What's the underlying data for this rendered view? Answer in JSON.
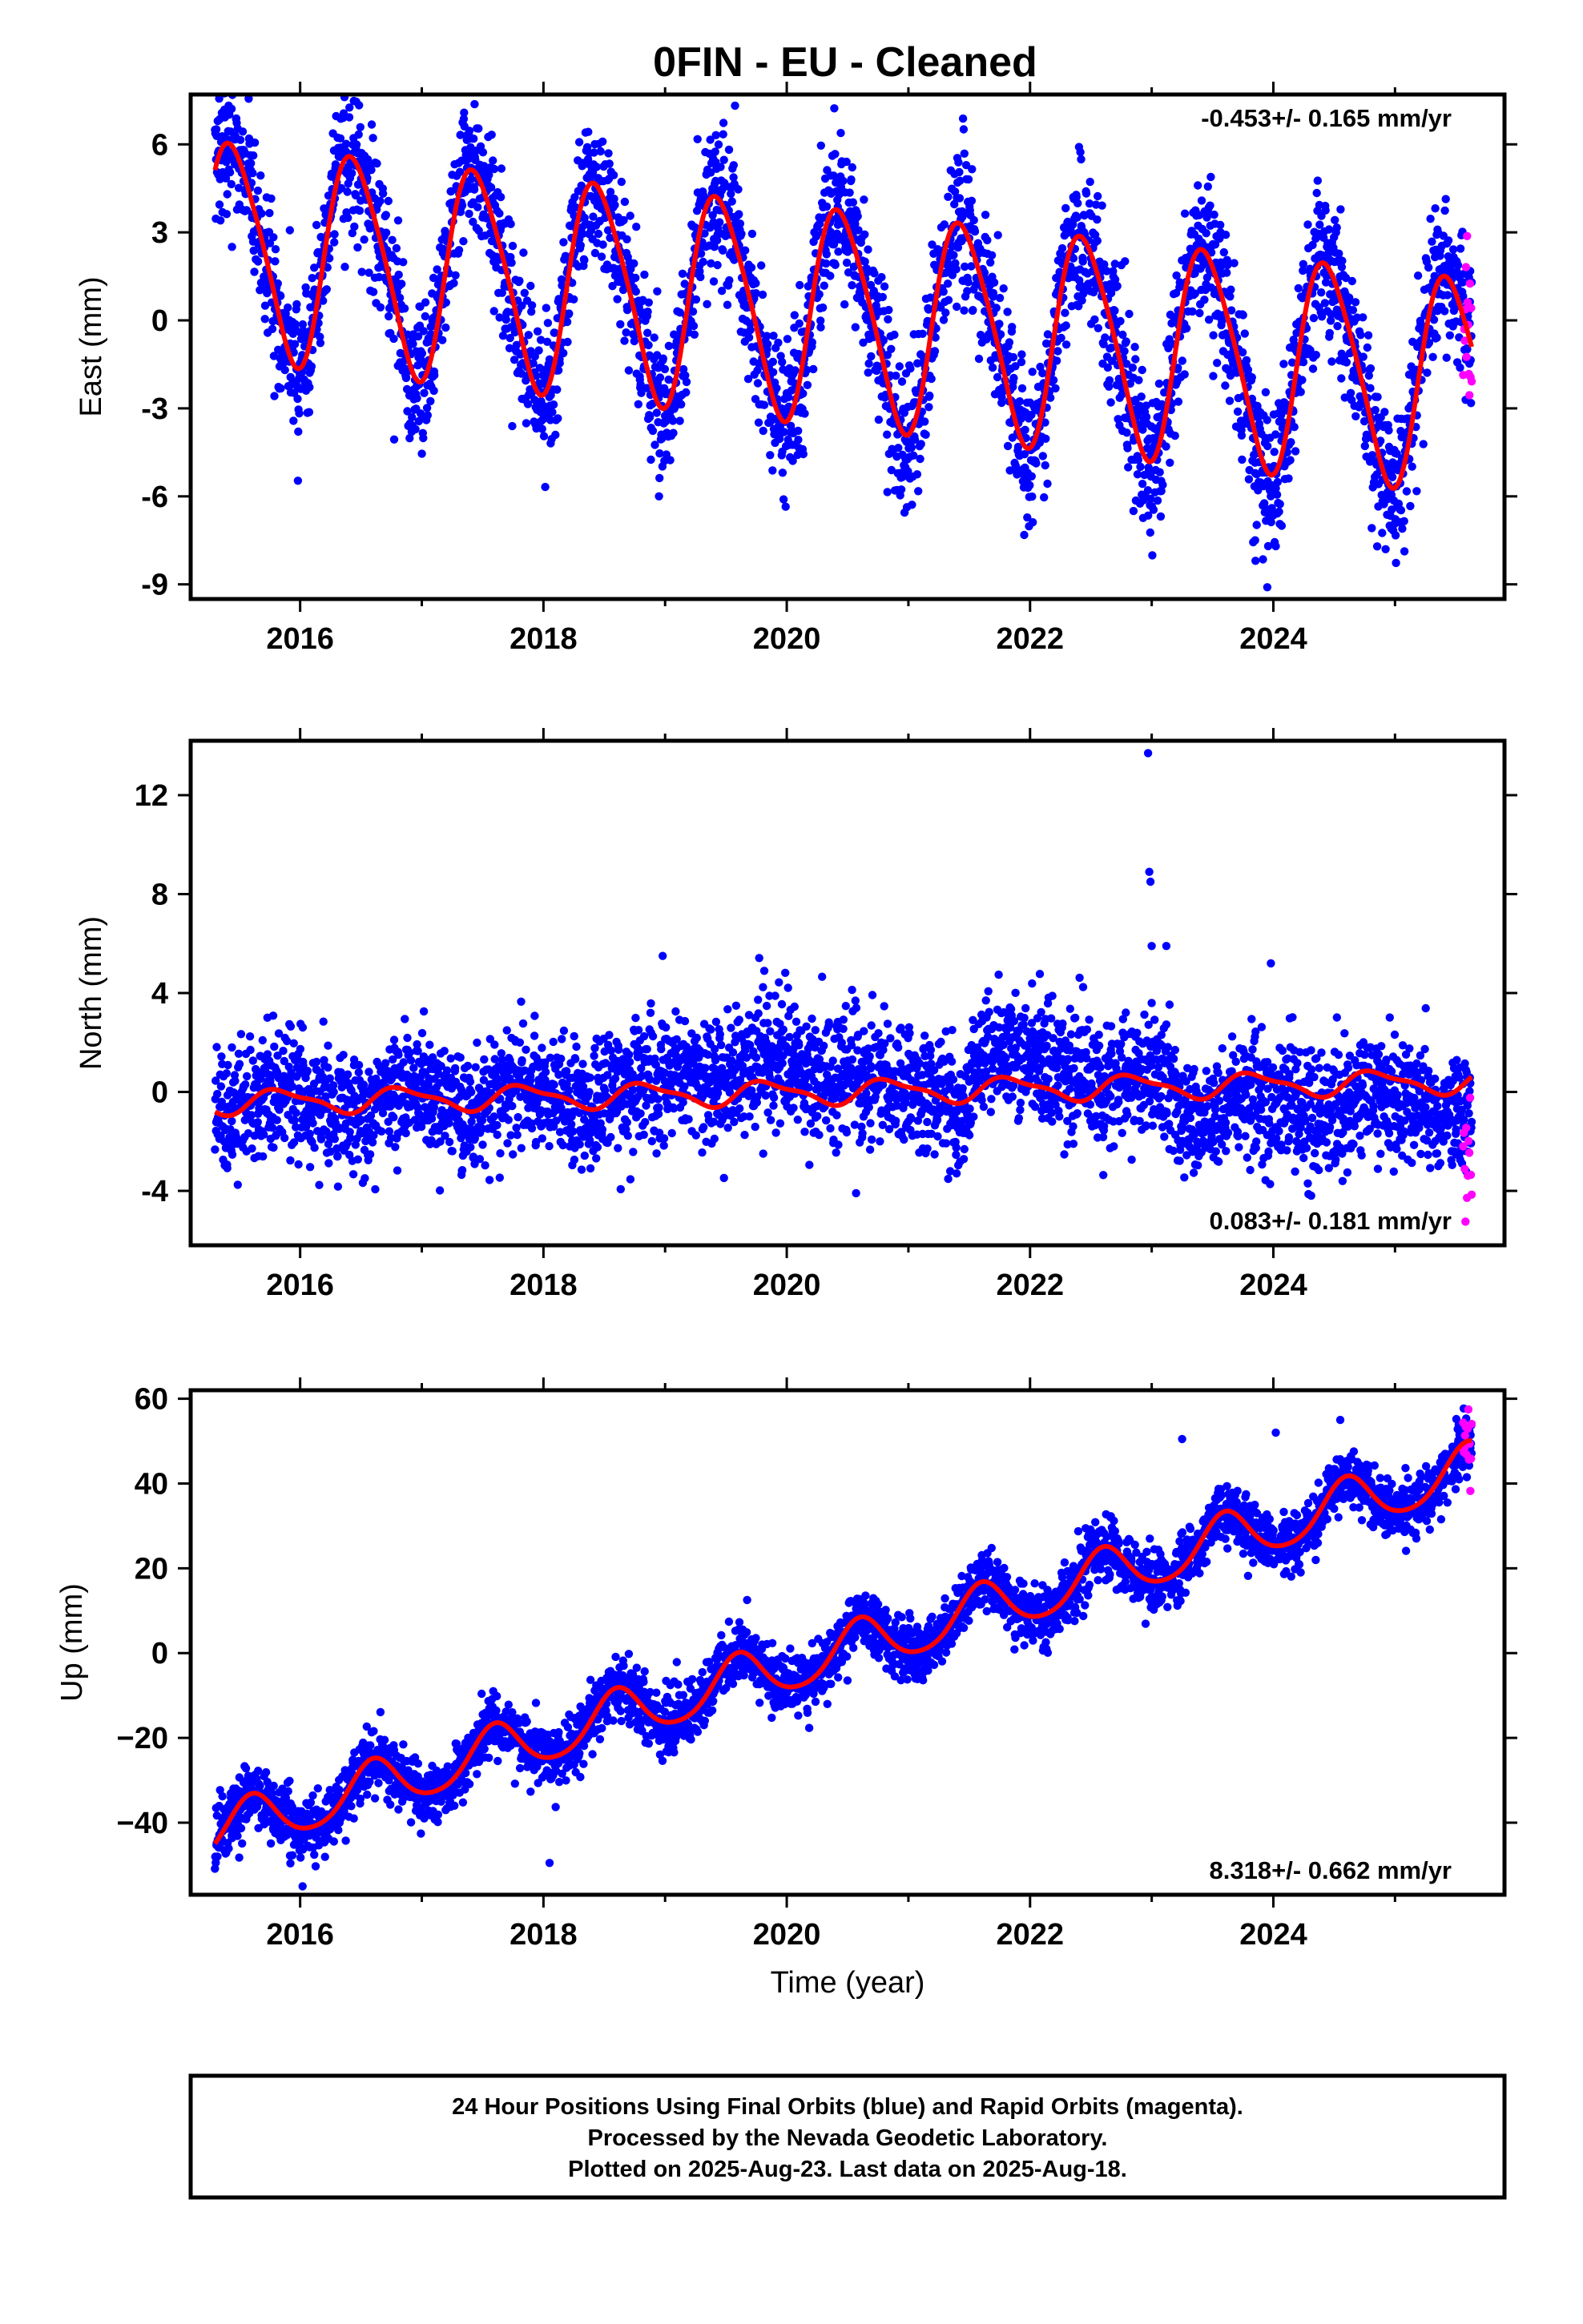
{
  "title": "0FIN  - EU - Cleaned",
  "colors": {
    "final": "#0000ff",
    "rapid": "#ff00ff",
    "fit": "#ff0000",
    "frame": "#000000"
  },
  "footer": {
    "line1": "24 Hour Positions Using Final Orbits (blue) and Rapid Orbits (magenta).",
    "line2": "Processed by the Nevada Geodetic Laboratory.",
    "line3": "Plotted on 2025-Aug-23. Last data on 2025-Aug-18."
  },
  "chart_data": [
    {
      "type": "scatter",
      "component": "east",
      "ylabel": "East (mm)",
      "xlabel": "",
      "xlim": [
        2015.1,
        2025.9
      ],
      "ylim": [
        -9.5,
        7.7
      ],
      "xticks": [
        2016,
        2018,
        2020,
        2022,
        2024
      ],
      "xtick_labels": [
        "2016",
        "2018",
        "2020",
        "2022",
        "2024"
      ],
      "yticks": [
        -9,
        -6,
        -3,
        0,
        3,
        6
      ],
      "ytick_labels": [
        "-9",
        "-6",
        "-3",
        "0",
        "3",
        "6"
      ],
      "rate_text": "-0.453+/- 0.165 mm/yr",
      "rate_position": "top-right",
      "grid": false,
      "data_span": [
        2015.3,
        2025.63
      ],
      "model": {
        "offset": 0.2,
        "trend": -0.453,
        "ref_year": 2020.4,
        "annual_amp": 3.6,
        "annual_peak": 0.45,
        "semiannual_amp": 0.5,
        "semiannual_peak": 0.3
      },
      "scatter_std": 1.25,
      "final_orbit_points": 3700,
      "rapid_orbit_points": 16,
      "rapid_span": [
        2025.56,
        2025.63
      ],
      "outliers": [
        [
          2023.95,
          -9.1
        ],
        [
          2023.85,
          -7.5
        ],
        [
          2024.02,
          -7.7
        ],
        [
          2018.95,
          -6.0
        ],
        [
          2022.85,
          -6.5
        ]
      ]
    },
    {
      "type": "scatter",
      "component": "north",
      "ylabel": "North (mm)",
      "xlabel": "",
      "xlim": [
        2015.1,
        2025.9
      ],
      "ylim": [
        -6.2,
        14.2
      ],
      "xticks": [
        2016,
        2018,
        2020,
        2022,
        2024
      ],
      "xtick_labels": [
        "2016",
        "2018",
        "2020",
        "2022",
        "2024"
      ],
      "yticks": [
        -4,
        0,
        4,
        8,
        12
      ],
      "ytick_labels": [
        "-4",
        "0",
        "4",
        "8",
        "12"
      ],
      "rate_text": "0.083+/- 0.181 mm/yr",
      "rate_position": "bottom-right",
      "grid": false,
      "data_span": [
        2015.3,
        2025.63
      ],
      "model": {
        "offset": 0.0,
        "trend": 0.083,
        "ref_year": 2020.4,
        "annual_amp": 0.45,
        "annual_peak": 0.85,
        "semiannual_amp": 0.15,
        "semiannual_peak": 0.2
      },
      "scatter_std": 1.2,
      "final_orbit_points": 3700,
      "rapid_orbit_points": 12,
      "rapid_span": [
        2025.56,
        2025.63
      ],
      "outliers": [
        [
          2022.97,
          13.7
        ],
        [
          2022.98,
          8.9
        ],
        [
          2022.99,
          8.5
        ],
        [
          2023.0,
          5.9
        ],
        [
          2023.12,
          5.9
        ],
        [
          2023.98,
          5.2
        ],
        [
          2018.98,
          5.5
        ],
        [
          2023.0,
          3.6
        ]
      ]
    },
    {
      "type": "scatter",
      "component": "up",
      "ylabel": "Up (mm)",
      "xlabel": "Time (year)",
      "xlim": [
        2015.1,
        2025.9
      ],
      "ylim": [
        -57,
        62
      ],
      "xticks": [
        2016,
        2018,
        2020,
        2022,
        2024
      ],
      "xtick_labels": [
        "2016",
        "2018",
        "2020",
        "2022",
        "2024"
      ],
      "yticks": [
        -40,
        -20,
        0,
        20,
        40,
        60
      ],
      "ytick_labels": [
        "−40",
        "−20",
        "0",
        "20",
        "40",
        "60"
      ],
      "rate_text": "8.318+/- 0.662 mm/yr",
      "rate_position": "bottom-right",
      "grid": false,
      "data_span": [
        2015.3,
        2025.63
      ],
      "model": {
        "offset": 0.0,
        "trend": 8.318,
        "ref_year": 2020.4,
        "annual_amp": 6.0,
        "annual_peak": 0.6,
        "semiannual_amp": 0.8,
        "semiannual_peak": 0.1
      },
      "scatter_std": 3.6,
      "final_orbit_points": 3700,
      "rapid_orbit_points": 14,
      "rapid_span": [
        2025.56,
        2025.63
      ],
      "outliers": [
        [
          2024.02,
          52.0
        ],
        [
          2024.55,
          55.0
        ],
        [
          2016.02,
          -55.0
        ],
        [
          2018.05,
          -49.5
        ],
        [
          2023.25,
          50.5
        ]
      ]
    }
  ]
}
